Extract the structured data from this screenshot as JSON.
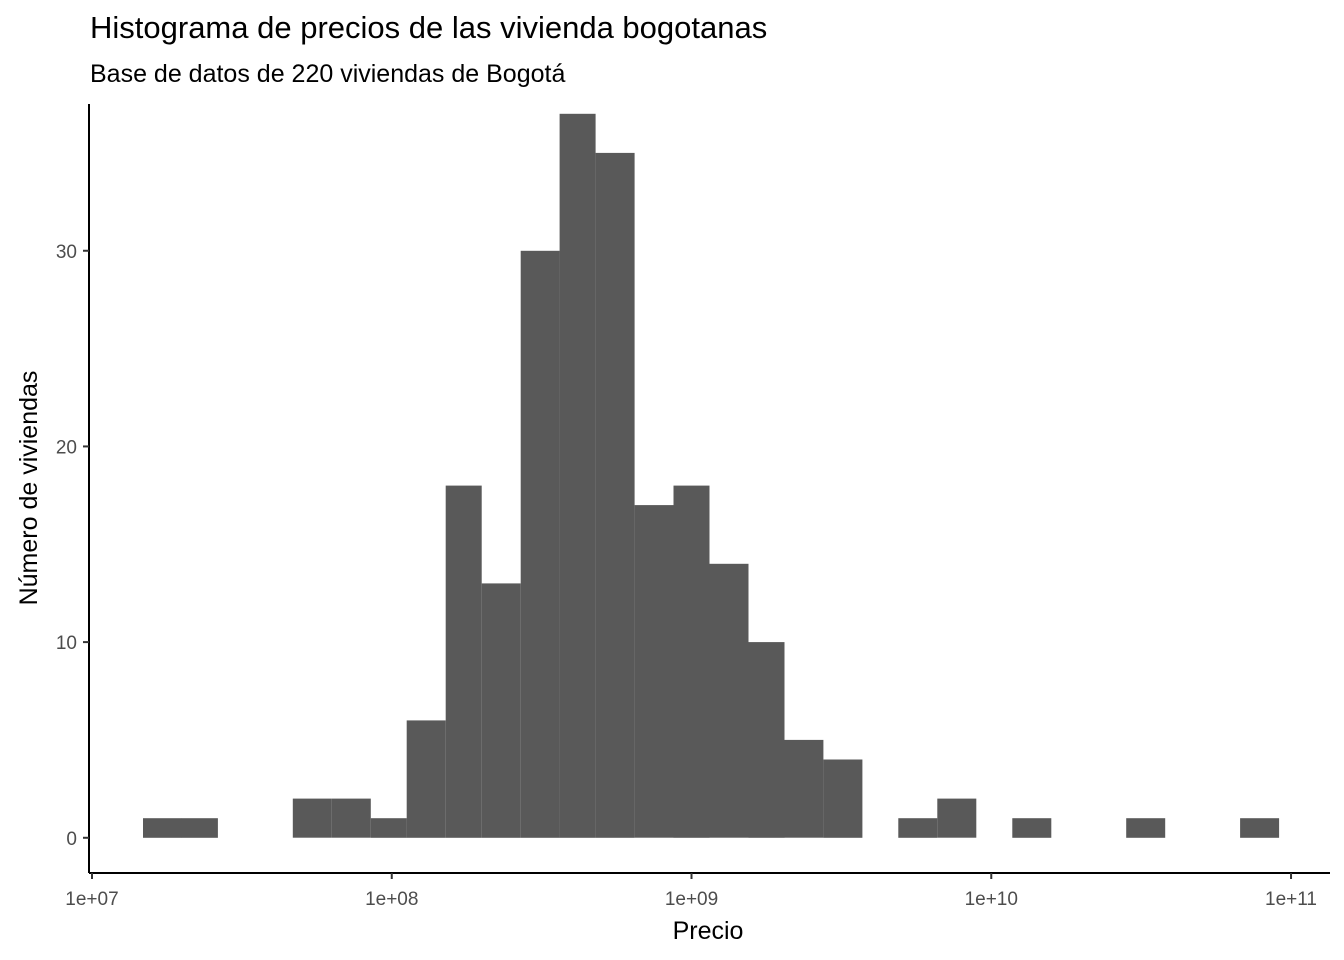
{
  "chart_data": {
    "type": "bar",
    "title": "Histograma de precios de las vivienda bogotanas",
    "subtitle": "Base de datos de 220 viviendas de Bogotá",
    "xlabel": "Precio",
    "ylabel": "Número de viviendas",
    "x_scale": "log10",
    "xlim_log10": [
      6.99,
      11.13
    ],
    "ylim": [
      -1.8,
      37.5
    ],
    "bar_color": "#595959",
    "axis_color": "#000000",
    "grid": false,
    "x_ticks": [
      {
        "log10": 7,
        "label": "1e+07"
      },
      {
        "log10": 8,
        "label": "1e+08"
      },
      {
        "log10": 9,
        "label": "1e+09"
      },
      {
        "log10": 10,
        "label": "1e+10"
      },
      {
        "log10": 11,
        "label": "1e+11"
      }
    ],
    "y_ticks": [
      {
        "value": 0,
        "label": "0"
      },
      {
        "value": 10,
        "label": "10"
      },
      {
        "value": 20,
        "label": "20"
      },
      {
        "value": 30,
        "label": "30"
      }
    ],
    "bins": [
      {
        "x0": 7.17,
        "x1": 7.3,
        "count": 1
      },
      {
        "x0": 7.3,
        "x1": 7.42,
        "count": 1
      },
      {
        "x0": 7.67,
        "x1": 7.8,
        "count": 2
      },
      {
        "x0": 7.8,
        "x1": 7.93,
        "count": 2
      },
      {
        "x0": 7.93,
        "x1": 8.05,
        "count": 1
      },
      {
        "x0": 8.05,
        "x1": 8.18,
        "count": 6
      },
      {
        "x0": 8.18,
        "x1": 8.3,
        "count": 18
      },
      {
        "x0": 8.3,
        "x1": 8.43,
        "count": 13
      },
      {
        "x0": 8.43,
        "x1": 8.56,
        "count": 30
      },
      {
        "x0": 8.56,
        "x1": 8.68,
        "count": 37
      },
      {
        "x0": 8.68,
        "x1": 8.81,
        "count": 35
      },
      {
        "x0": 8.81,
        "x1": 8.94,
        "count": 17
      },
      {
        "x0": 8.94,
        "x1": 9.06,
        "count": 18
      },
      {
        "x0": 9.06,
        "x1": 9.19,
        "count": 14
      },
      {
        "x0": 9.19,
        "x1": 9.31,
        "count": 10
      },
      {
        "x0": 9.31,
        "x1": 9.44,
        "count": 5
      },
      {
        "x0": 9.44,
        "x1": 9.57,
        "count": 4
      },
      {
        "x0": 9.69,
        "x1": 9.82,
        "count": 1
      },
      {
        "x0": 9.82,
        "x1": 9.95,
        "count": 2
      },
      {
        "x0": 10.07,
        "x1": 10.2,
        "count": 1
      },
      {
        "x0": 10.45,
        "x1": 10.58,
        "count": 1
      },
      {
        "x0": 10.83,
        "x1": 10.96,
        "count": 1
      }
    ]
  }
}
